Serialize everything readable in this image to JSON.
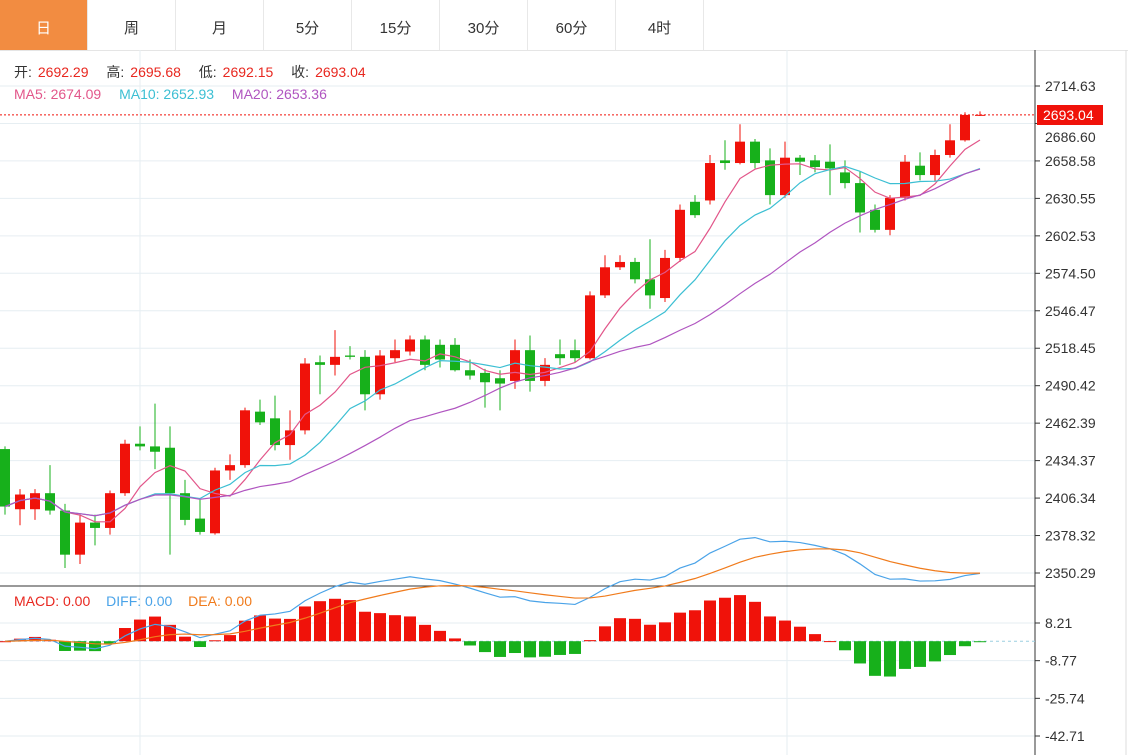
{
  "tabs": [
    "日",
    "周",
    "月",
    "5分",
    "15分",
    "30分",
    "60分",
    "4时"
  ],
  "active_tab": 0,
  "ohlc": {
    "open_label": "开:",
    "open": "2692.29",
    "high_label": "高:",
    "high": "2695.68",
    "low_label": "低:",
    "low": "2692.15",
    "close_label": "收:",
    "close": "2693.04"
  },
  "ma": {
    "ma5": "MA5: 2674.09",
    "ma10": "MA10: 2652.93",
    "ma20": "MA20: 2653.36"
  },
  "macd": {
    "macd": "MACD: 0.00",
    "diff": "DIFF: 0.00",
    "dea": "DEA: 0.00"
  },
  "current_price": "2693.04",
  "colors": {
    "up": "#f0120a",
    "down": "#17b01b",
    "ma5": "#e2568a",
    "ma10": "#3cbfd3",
    "ma20": "#b055c0",
    "diff": "#4aa3e8",
    "dea": "#f07b1c",
    "accent": "#f28c41"
  },
  "price_axis": [
    "2714.63",
    "2686.60",
    "2658.58",
    "2630.55",
    "2602.53",
    "2574.50",
    "2546.47",
    "2518.45",
    "2490.42",
    "2462.39",
    "2434.37",
    "2406.34",
    "2378.32",
    "2350.29"
  ],
  "macd_axis": [
    "8.21",
    "-8.77",
    "-25.74",
    "-42.71"
  ],
  "chart_data": {
    "type": "candlestick",
    "candles": [
      [
        2443,
        2445,
        2394,
        2400
      ],
      [
        2398,
        2413,
        2386,
        2409
      ],
      [
        2398,
        2413,
        2390,
        2410
      ],
      [
        2410,
        2431,
        2394,
        2397
      ],
      [
        2397,
        2402,
        2354,
        2364
      ],
      [
        2364,
        2394,
        2357,
        2388
      ],
      [
        2388,
        2394,
        2371,
        2384
      ],
      [
        2384,
        2412,
        2379,
        2410
      ],
      [
        2410,
        2450,
        2408,
        2447
      ],
      [
        2447,
        2460,
        2442,
        2445
      ],
      [
        2445,
        2477,
        2428,
        2441
      ],
      [
        2444,
        2460,
        2364,
        2410
      ],
      [
        2410,
        2420,
        2386,
        2390
      ],
      [
        2391,
        2406,
        2379,
        2381
      ],
      [
        2380,
        2429,
        2379,
        2427
      ],
      [
        2427,
        2439,
        2420,
        2431
      ],
      [
        2431,
        2474,
        2429,
        2472
      ],
      [
        2471,
        2480,
        2461,
        2463
      ],
      [
        2466,
        2483,
        2442,
        2446
      ],
      [
        2446,
        2472,
        2435,
        2457
      ],
      [
        2457,
        2511,
        2454,
        2507
      ],
      [
        2508,
        2513,
        2484,
        2506
      ],
      [
        2506,
        2532,
        2498,
        2512
      ],
      [
        2513,
        2520,
        2510,
        2512
      ],
      [
        2512,
        2517,
        2472,
        2484
      ],
      [
        2484,
        2517,
        2480,
        2513
      ],
      [
        2511,
        2525,
        2508,
        2517
      ],
      [
        2516,
        2528,
        2513,
        2525
      ],
      [
        2525,
        2528,
        2502,
        2506
      ],
      [
        2521,
        2525,
        2504,
        2510
      ],
      [
        2521,
        2526,
        2501,
        2502
      ],
      [
        2502,
        2510,
        2495,
        2498
      ],
      [
        2500,
        2503,
        2474,
        2493
      ],
      [
        2496,
        2502,
        2472,
        2492
      ],
      [
        2494,
        2525,
        2488,
        2517
      ],
      [
        2517,
        2528,
        2486,
        2494
      ],
      [
        2494,
        2511,
        2490,
        2506
      ],
      [
        2514,
        2525,
        2506,
        2511
      ],
      [
        2517,
        2525,
        2508,
        2511
      ],
      [
        2511,
        2561,
        2510,
        2558
      ],
      [
        2558,
        2588,
        2556,
        2579
      ],
      [
        2579,
        2588,
        2577,
        2583
      ],
      [
        2583,
        2586,
        2567,
        2570
      ],
      [
        2570,
        2600,
        2548,
        2558
      ],
      [
        2556,
        2592,
        2553,
        2586
      ],
      [
        2586,
        2626,
        2583,
        2622
      ],
      [
        2628,
        2633,
        2616,
        2618
      ],
      [
        2629,
        2663,
        2626,
        2657
      ],
      [
        2659,
        2674,
        2652,
        2657
      ],
      [
        2657,
        2686,
        2656,
        2673
      ],
      [
        2673,
        2675,
        2653,
        2657
      ],
      [
        2659,
        2668,
        2626,
        2633
      ],
      [
        2633,
        2673,
        2631,
        2661
      ],
      [
        2661,
        2663,
        2648,
        2658
      ],
      [
        2659,
        2663,
        2650,
        2654
      ],
      [
        2658,
        2671,
        2633,
        2653
      ],
      [
        2650,
        2659,
        2638,
        2642
      ],
      [
        2642,
        2651,
        2605,
        2620
      ],
      [
        2622,
        2626,
        2605,
        2607
      ],
      [
        2607,
        2633,
        2603,
        2631
      ],
      [
        2631,
        2663,
        2629,
        2658
      ],
      [
        2655,
        2665,
        2644,
        2648
      ],
      [
        2648,
        2667,
        2643,
        2663
      ],
      [
        2663,
        2686,
        2661,
        2674
      ],
      [
        2674,
        2695,
        2673,
        2693
      ],
      [
        2692.29,
        2695.68,
        2692.15,
        2693.04
      ]
    ],
    "price_range": [
      2350.29,
      2714.63
    ],
    "macd_range": [
      -42.71,
      8.21
    ]
  }
}
